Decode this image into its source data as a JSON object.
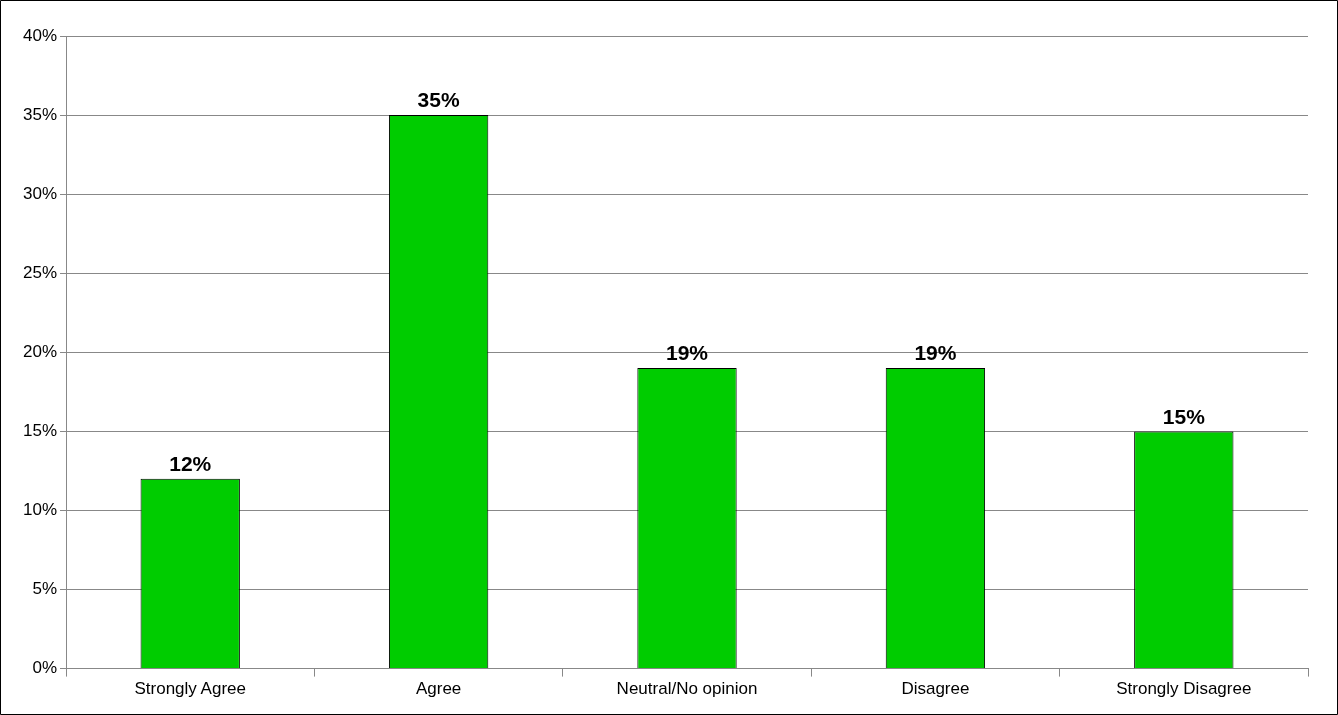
{
  "chart_data": {
    "type": "bar",
    "categories": [
      "Strongly Agree",
      "Agree",
      "Neutral/No opinion",
      "Disagree",
      "Strongly Disagree"
    ],
    "values": [
      12,
      35,
      19,
      19,
      15
    ],
    "value_labels": [
      "12%",
      "35%",
      "19%",
      "19%",
      "15%"
    ],
    "color": "#00cc00",
    "ylim": [
      0,
      40
    ],
    "yticks": [
      {
        "value": 0,
        "label": "0%"
      },
      {
        "value": 5,
        "label": "5%"
      },
      {
        "value": 10,
        "label": "10%"
      },
      {
        "value": 15,
        "label": "15%"
      },
      {
        "value": 20,
        "label": "20%"
      },
      {
        "value": 25,
        "label": "25%"
      },
      {
        "value": 30,
        "label": "30%"
      },
      {
        "value": 35,
        "label": "35%"
      },
      {
        "value": 40,
        "label": "40%"
      }
    ],
    "grid": "y",
    "legend": false
  }
}
